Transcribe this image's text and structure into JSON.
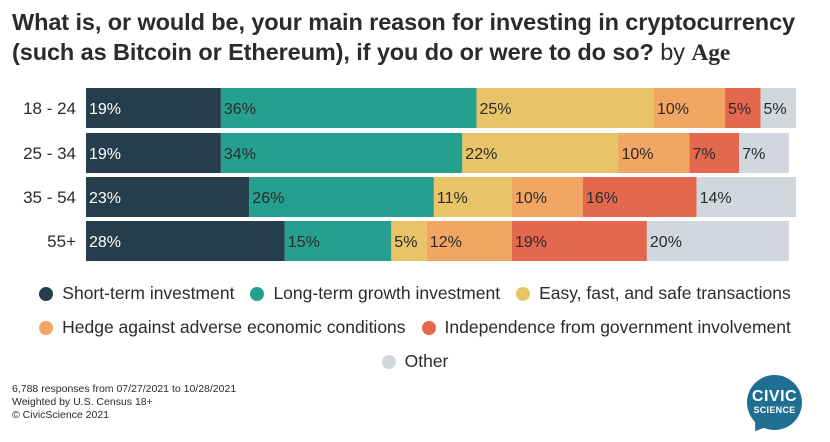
{
  "title": {
    "main": "What is, or would be, your main reason for investing in cryptocurrency (such as Bitcoin or Ethereum), if you do or were to do so?",
    "by": "by",
    "group": "Age"
  },
  "chart_data": {
    "type": "bar",
    "orientation": "horizontal",
    "stacked": true,
    "categories": [
      "18 - 24",
      "25 - 34",
      "35 - 54",
      "55+"
    ],
    "series": [
      {
        "name": "Short-term investment",
        "color": "#263e4b",
        "values": [
          19,
          19,
          23,
          28
        ],
        "labels": [
          "19%",
          "19%",
          "23%",
          "28%"
        ]
      },
      {
        "name": "Long-term growth investment",
        "color": "#26a08e",
        "values": [
          36,
          34,
          26,
          15
        ],
        "labels": [
          "36%",
          "34%",
          "26%",
          "15%"
        ]
      },
      {
        "name": "Easy, fast, and safe transactions",
        "color": "#e8c367",
        "values": [
          25,
          22,
          11,
          5
        ],
        "labels": [
          "25%",
          "22%",
          "11%",
          "5%"
        ]
      },
      {
        "name": "Hedge against adverse economic conditions",
        "color": "#f2a663",
        "values": [
          10,
          10,
          10,
          12
        ],
        "labels": [
          "10%",
          "10%",
          "10%",
          "12%"
        ]
      },
      {
        "name": "Independence from government involvement",
        "color": "#e4684d",
        "values": [
          5,
          7,
          16,
          19
        ],
        "labels": [
          "5%",
          "7%",
          "16%",
          "19%"
        ]
      },
      {
        "name": "Other",
        "color": "#d2d6dd",
        "values": [
          5,
          7,
          14,
          20
        ],
        "labels": [
          "5%",
          "7%",
          "14%",
          "20%"
        ]
      }
    ],
    "xlim": [
      0,
      100
    ],
    "grid": false,
    "legend_position": "bottom"
  },
  "footnote": {
    "line1": "6,788 responses from 07/27/2021 to 10/28/2021",
    "line2": "Weighted by U.S. Census 18+",
    "line3": "© CivicScience 2021"
  },
  "logo": {
    "line1": "CIVIC",
    "line2": "SCIENCE"
  }
}
